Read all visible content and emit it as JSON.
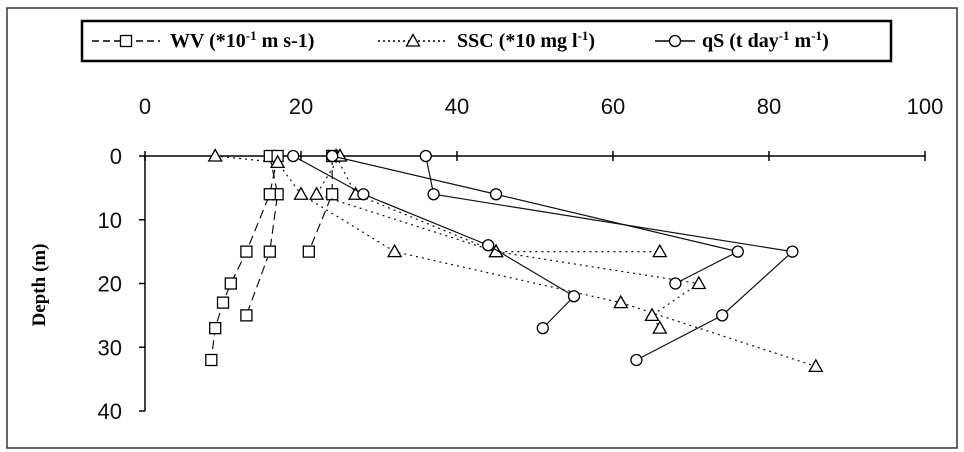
{
  "chart_data": {
    "type": "line",
    "title": "",
    "xlabel": "",
    "ylabel": "Depth (m)",
    "xlim": [
      0,
      100
    ],
    "ylim": [
      0,
      40
    ],
    "x_axis_position": "top",
    "y_inverted": true,
    "grid": false,
    "legend_placement": "top",
    "xticks": [
      "0",
      "20",
      "40",
      "60",
      "80",
      "100"
    ],
    "yticks": [
      "0",
      "10",
      "20",
      "30",
      "40"
    ],
    "legend": [
      {
        "label": "WV (*10-1 m s-1)",
        "marker": "square",
        "dash": "dashed",
        "base": "WV (*10",
        "sup1": "-1",
        "mid": " m s-1)",
        "sup2": "",
        "end": ""
      },
      {
        "label": "SSC (*10 mg l-1)",
        "marker": "triangle",
        "dash": "dotted",
        "base": "SSC (*10 mg l",
        "sup1": "-1",
        "mid": ")",
        "sup2": "",
        "end": ""
      },
      {
        "label": "qS (t day-1 m-1)",
        "marker": "circle",
        "dash": "solid",
        "base": "qS (t day",
        "sup1": "-1",
        "mid": " m",
        "sup2": "-1",
        "end": ")"
      }
    ],
    "series": [
      {
        "group": "WV",
        "marker": "square",
        "dash": "dashed",
        "points": [
          [
            24,
            0
          ],
          [
            24,
            6
          ],
          [
            21,
            15
          ]
        ]
      },
      {
        "group": "WV",
        "marker": "square",
        "dash": "dashed",
        "points": [
          [
            16,
            0
          ],
          [
            17,
            6
          ],
          [
            16,
            15
          ],
          [
            13,
            25
          ]
        ]
      },
      {
        "group": "WV",
        "marker": "square",
        "dash": "dashed",
        "points": [
          [
            17,
            0
          ],
          [
            16,
            6
          ],
          [
            13,
            15
          ],
          [
            11,
            20
          ],
          [
            10,
            23
          ],
          [
            9,
            27
          ],
          [
            8.5,
            32
          ]
        ]
      },
      {
        "group": "SSC",
        "marker": "triangle",
        "dash": "dotted",
        "points": [
          [
            9,
            0
          ],
          [
            17,
            1
          ],
          [
            20,
            6
          ],
          [
            32,
            15
          ],
          [
            61,
            23
          ],
          [
            86,
            33
          ]
        ]
      },
      {
        "group": "SSC",
        "marker": "triangle",
        "dash": "dotted",
        "points": [
          [
            24.5,
            0
          ],
          [
            27,
            6
          ],
          [
            45,
            15
          ],
          [
            66,
            15
          ]
        ]
      },
      {
        "group": "SSC",
        "marker": "triangle",
        "dash": "dotted",
        "points": [
          [
            25,
            0
          ],
          [
            22,
            6
          ],
          [
            45,
            15
          ],
          [
            71,
            20
          ],
          [
            65,
            25
          ],
          [
            66,
            27
          ]
        ]
      },
      {
        "group": "qS",
        "marker": "circle",
        "dash": "solid",
        "points": [
          [
            19,
            0
          ],
          [
            28,
            6
          ],
          [
            44,
            14
          ],
          [
            55,
            22
          ],
          [
            51,
            27
          ]
        ]
      },
      {
        "group": "qS",
        "marker": "circle",
        "dash": "solid",
        "points": [
          [
            24,
            0
          ],
          [
            45,
            6
          ],
          [
            76,
            15
          ],
          [
            68,
            20
          ]
        ]
      },
      {
        "group": "qS",
        "marker": "circle",
        "dash": "solid",
        "points": [
          [
            36,
            0
          ],
          [
            37,
            6
          ],
          [
            83,
            15
          ],
          [
            74,
            25
          ],
          [
            63,
            32
          ]
        ]
      }
    ]
  }
}
